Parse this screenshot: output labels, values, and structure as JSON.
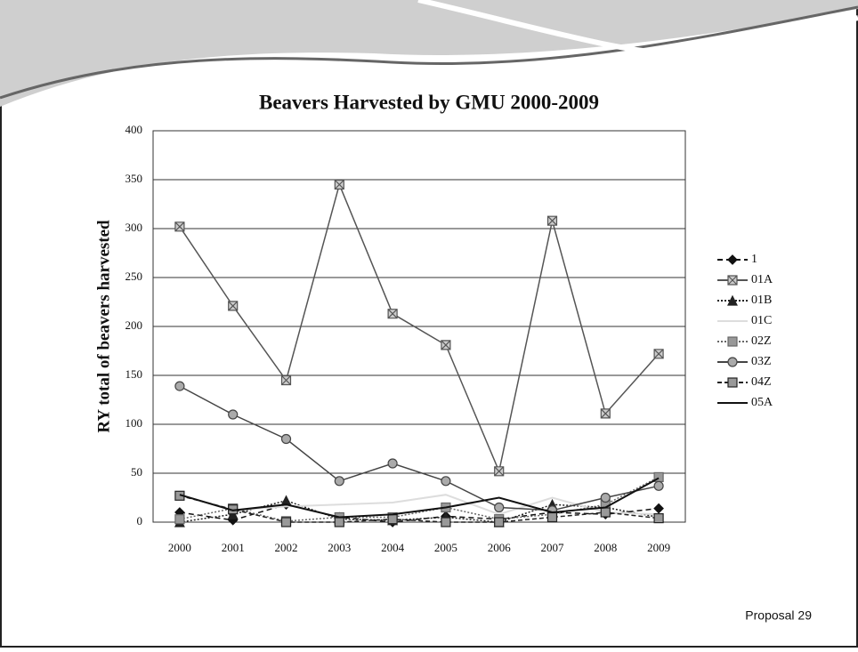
{
  "chart_data": {
    "type": "line",
    "title": "Beavers Harvested by GMU 2000-2009",
    "y_label": "RY total of beavers harvested",
    "footer": "Proposal 29",
    "categories": [
      "2000",
      "2001",
      "2002",
      "2003",
      "2004",
      "2005",
      "2006",
      "2007",
      "2008",
      "2009"
    ],
    "ylim": [
      0,
      400
    ],
    "yticks": [
      0,
      50,
      100,
      150,
      200,
      250,
      300,
      350,
      400
    ],
    "grid": true,
    "legend": "right",
    "series": [
      {
        "name": "1",
        "color": "#111111",
        "marker": "diamond",
        "dash": "6,4",
        "values": [
          10,
          2,
          18,
          5,
          0,
          6,
          3,
          10,
          8,
          14
        ]
      },
      {
        "name": "01A",
        "color": "#555555",
        "marker": "x",
        "dash": "none",
        "values": [
          302,
          221,
          145,
          345,
          213,
          181,
          52,
          308,
          111,
          172
        ]
      },
      {
        "name": "01B",
        "color": "#222222",
        "marker": "triangle",
        "dash": "2,2",
        "values": [
          0,
          8,
          22,
          3,
          2,
          5,
          0,
          18,
          15,
          5
        ]
      },
      {
        "name": "01C",
        "color": "#dddddd",
        "marker": "none",
        "dash": "none",
        "values": [
          28,
          12,
          16,
          18,
          20,
          28,
          8,
          25,
          10,
          8
        ]
      },
      {
        "name": "02Z",
        "color": "#666666",
        "marker": "square",
        "dash": "2,2",
        "values": [
          3,
          14,
          1,
          5,
          5,
          15,
          3,
          8,
          18,
          46
        ]
      },
      {
        "name": "03Z",
        "color": "#444444",
        "marker": "circle",
        "dash": "none",
        "values": [
          139,
          110,
          85,
          42,
          60,
          42,
          15,
          12,
          25,
          37
        ]
      },
      {
        "name": "04Z",
        "color": "#222222",
        "marker": "square",
        "dash": "5,3",
        "values": [
          27,
          13,
          0,
          0,
          3,
          0,
          0,
          5,
          10,
          4
        ]
      },
      {
        "name": "05A",
        "color": "#111111",
        "marker": "none",
        "dash": "none",
        "values": [
          28,
          12,
          18,
          5,
          8,
          15,
          25,
          10,
          15,
          45
        ]
      }
    ]
  }
}
